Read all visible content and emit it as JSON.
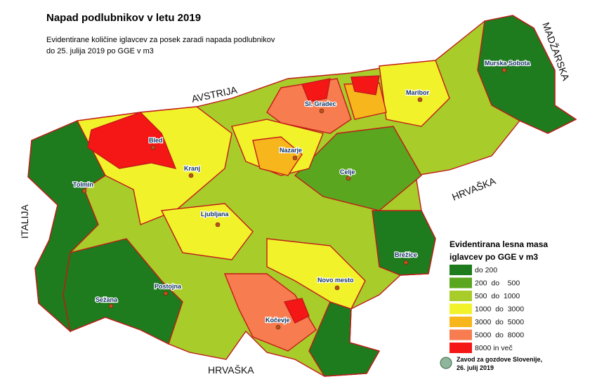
{
  "title": "Napad podlubnikov v letu 2019",
  "subtitle": [
    "Evidentirane količine iglavcev za posek zaradi napada podlubnikov",
    "do 25. julija 2019 po GGE v m3"
  ],
  "countries": [
    "AVSTRIJA",
    "MADŽARSKA",
    "HRVAŠKA",
    "ITALIJA",
    "HRVAŠKA"
  ],
  "cities": [
    "Murska Sobota",
    "Maribor",
    "Sl. Gradec",
    "Bled",
    "Kranj",
    "Nazarje",
    "Celje",
    "Tolmin",
    "Ljubljana",
    "Brežice",
    "Novo mesto",
    "Postojna",
    "Sežana",
    "Kočevje"
  ],
  "legend": {
    "title": [
      "Evidentirana lesna masa",
      "iglavcev po GGE v m3"
    ],
    "items": [
      {
        "label": "do 200",
        "color": "#1e7b1e"
      },
      {
        "label": "200  do    500",
        "color": "#5aa61e"
      },
      {
        "label": "500  do  1000",
        "color": "#a8cc2a"
      },
      {
        "label": "1000  do  3000",
        "color": "#f2f22a"
      },
      {
        "label": "3000  do  5000",
        "color": "#f7b71c"
      },
      {
        "label": "5000  do  8000",
        "color": "#f77c4f"
      },
      {
        "label": "8000 in več",
        "color": "#f51616"
      }
    ]
  },
  "source": [
    "Zavod za gozdove Slovenije,",
    "26. julij 2019"
  ]
}
